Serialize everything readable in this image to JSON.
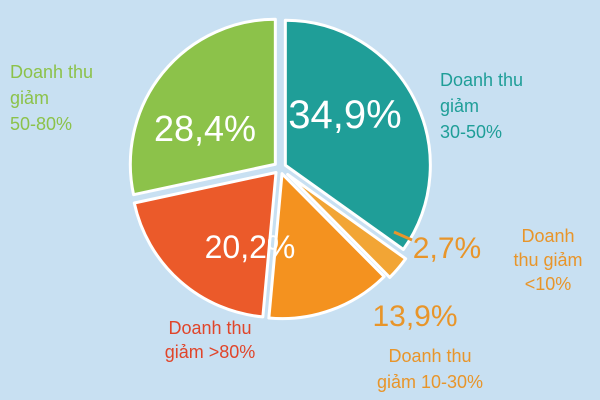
{
  "chart_data": {
    "type": "pie",
    "title": "",
    "slices": [
      {
        "label_lines": [
          "Doanh thu",
          "giảm",
          "30-50%"
        ],
        "value": 34.9,
        "value_label": "34,9%",
        "color": "#1f9e98",
        "label_color": "#1f9e98"
      },
      {
        "label_lines": [
          "Doanh",
          "thu giảm",
          "<10%"
        ],
        "value": 2.7,
        "value_label": "2,7%",
        "color": "#f2a535",
        "label_color": "#e8952a"
      },
      {
        "label_lines": [
          "Doanh thu",
          "giảm 10-30%"
        ],
        "value": 13.9,
        "value_label": "13,9%",
        "color": "#f4921f",
        "label_color": "#e8952a"
      },
      {
        "label_lines": [
          "Doanh thu",
          "giảm >80%"
        ],
        "value": 20.2,
        "value_label": "20,2%",
        "color": "#eb5a2a",
        "label_color": "#e0452a"
      },
      {
        "label_lines": [
          "Doanh thu",
          "giảm",
          "50-80%"
        ],
        "value": 28.4,
        "value_label": "28,4%",
        "color": "#8cc24a",
        "label_color": "#8cc24a"
      }
    ]
  }
}
